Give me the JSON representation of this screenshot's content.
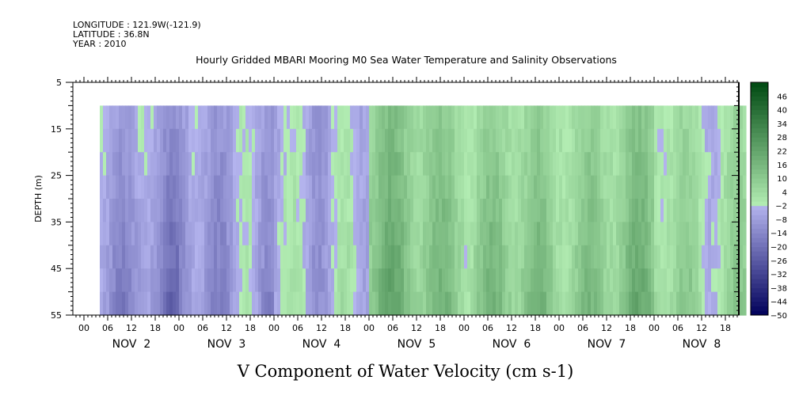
{
  "header": {
    "longitude": "LONGITUDE : 121.9W(-121.9)",
    "latitude": "LATITUDE : 36.8N",
    "year": "YEAR : 2010"
  },
  "chart_data": {
    "type": "heatmap",
    "title": "Hourly Gridded MBARI Mooring M0 Sea Water Temperature and Salinity Observations",
    "xlabel": "V Component of Water Velocity (cm s-1)",
    "ylabel": "DEPTH (m)",
    "y_ticks": [
      5,
      15,
      25,
      35,
      45,
      55
    ],
    "ylim": [
      5,
      55
    ],
    "y_inverted": true,
    "data_depth_range": [
      10,
      55
    ],
    "x_start": "NOV 1 18:00",
    "x_hour_ticks": [
      "00",
      "06",
      "12",
      "18",
      "00",
      "06",
      "12",
      "18",
      "00",
      "06",
      "12",
      "18",
      "00",
      "06",
      "12",
      "18",
      "00",
      "06",
      "12",
      "18",
      "00",
      "06",
      "12",
      "18",
      "00",
      "06",
      "12",
      "18"
    ],
    "x_day_labels": [
      "NOV 2",
      "NOV 3",
      "NOV 4",
      "NOV 5",
      "NOV 6",
      "NOV 7",
      "NOV 8"
    ],
    "data_time_start": "NOV 2 04:00",
    "data_time_end": "NOV 8 23:00",
    "colorbar": {
      "levels": [
        -50,
        -44,
        -38,
        -32,
        -26,
        -20,
        -14,
        -8,
        -2,
        4,
        10,
        16,
        22,
        28,
        34,
        40,
        46
      ],
      "range": [
        -50,
        52
      ],
      "colors": {
        "negative_strong": "#00005a",
        "negative_weak": "#b4b4ee",
        "positive_weak": "#b4eeb4",
        "positive_strong": "#004a12"
      }
    },
    "velocity_by_day": [
      {
        "day": "NOV 2",
        "surface": -6,
        "deep": -14
      },
      {
        "day": "NOV 3",
        "surface": -6,
        "deep": -10
      },
      {
        "day": "NOV 4",
        "surface": -4,
        "deep": -2
      },
      {
        "day": "NOV 5",
        "surface": 8,
        "deep": 14
      },
      {
        "day": "NOV 6",
        "surface": 4,
        "deep": 10
      },
      {
        "day": "NOV 7",
        "surface": 6,
        "deep": 12
      },
      {
        "day": "NOV 8",
        "surface": 2,
        "deep": 6
      }
    ]
  }
}
